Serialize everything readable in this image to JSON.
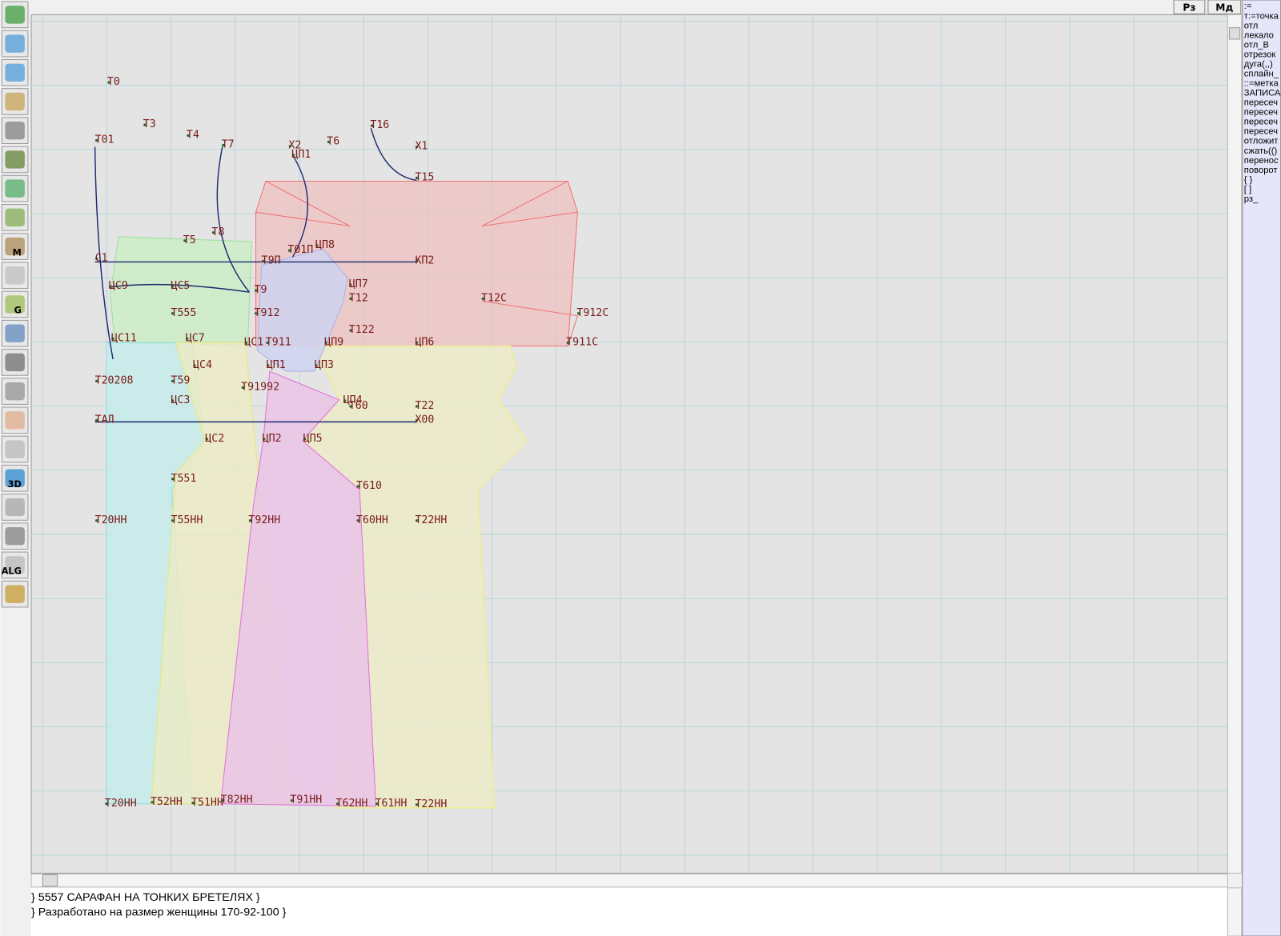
{
  "tabs": [
    "Рз",
    "Мд"
  ],
  "toolbar": {
    "icon_labels": [
      "M",
      "G",
      "3D",
      "ALG"
    ]
  },
  "points": [
    "Т0",
    "Т3",
    "Т4",
    "Т01",
    "Т7",
    "Х2",
    "Т6",
    "Т16",
    "Х1",
    "ЦП1",
    "Т15",
    "Т5",
    "Т8",
    "ЦП8",
    "Т01П",
    "Т9П",
    "С1",
    "КП2",
    "ЦС9",
    "ЦС5",
    "Т9",
    "ЦП7",
    "Т12",
    "Т12С",
    "Т555",
    "Т912",
    "Т912С",
    "Т122",
    "ЦС11",
    "ЦС7",
    "ЦС1",
    "Т911",
    "ЦП9",
    "ЦП6",
    "Т911С",
    "ЦС4",
    "ЦП1",
    "ЦП3",
    "Т20208",
    "Т59",
    "Т91992",
    "ЦС3",
    "ЦП4",
    "Т60",
    "Т22",
    "ТАЛ",
    "Х00",
    "ЦС2",
    "ЦП2",
    "ЦП5",
    "Т551",
    "Т610",
    "Т20НН",
    "Т55НН",
    "Т92НН",
    "Т60НН",
    "Т22НН",
    "Т20НН",
    "Т52НН",
    "Т51НН",
    "Т82НН",
    "Т91НН",
    "Т62НН",
    "Т61НН",
    "Т22НН"
  ],
  "commands": [
    ":=",
    "т:=точка",
    "отл",
    "лекало",
    "отл_В",
    "отрезок",
    "дуга(,,)",
    "сплайн_",
    "::=метка",
    "ЗАПИСА",
    "пересеч",
    "пересеч",
    "пересеч",
    "пересеч",
    "отложит",
    "сжать(()",
    "перенос",
    "поворот",
    "{ }",
    "[ ]",
    "рз_"
  ],
  "notes": [
    "} 5557  САРАФАН НА ТОНКИХ БРЕТЕЛЯХ  }",
    "} Разработано на размер женщины 170-92-100 }"
  ]
}
